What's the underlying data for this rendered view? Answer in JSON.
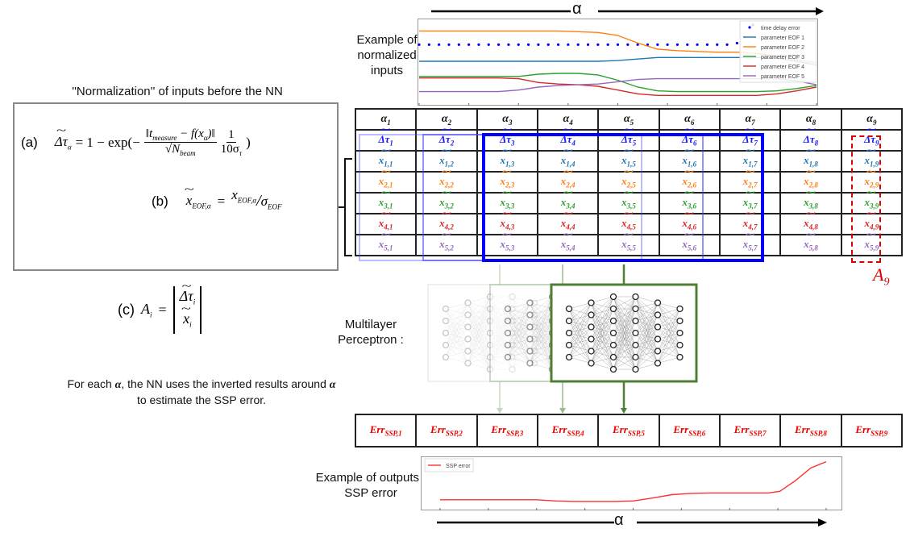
{
  "alpha_symbol": "α",
  "top_example_label": "Example of normalized inputs",
  "bottom_example_label": "Example of outputs / SSP error",
  "normalization_title": "''Normalization'' of inputs before the NN",
  "formulas": {
    "a_label": "(a)",
    "a_lhs": "Δτ",
    "a_lhs_sub": "α",
    "a_mid": "= 1 − exp(−",
    "a_num": "‖t",
    "a_num_sub": "measure",
    "a_num_rest": " − f(x",
    "a_num_rest_sub": "α",
    "a_num_end": ")‖",
    "a_den": "√N",
    "a_den_sub": "beam",
    "a_frac2_num": "1",
    "a_frac2_den": "10σ",
    "a_frac2_den_sub": "τ",
    "a_close": ")",
    "b_label": "(b)",
    "b_lhs": "x",
    "b_lhs_sub": "EOF,α",
    "b_eq": "=",
    "b_num": "x",
    "b_num_sub": "EOF,α",
    "b_slash": "/",
    "b_den": "σ",
    "b_den_sub": "EOF",
    "c_label": "(c)",
    "c_lhs": "A",
    "c_lhs_sub": "i",
    "c_eq": "=",
    "c_top": "Δτ",
    "c_top_sub": "i",
    "c_bot": "x",
    "c_bot_sub": "i"
  },
  "mlp_label": "Multilayer Perceptron :",
  "explanation": {
    "pre": "For each ",
    "alpha": "α",
    "mid": ", the NN uses the inverted results around ",
    "alpha2": "α",
    "post": " to estimate the SSP error."
  },
  "window_label": "A",
  "window_label_sub": "9",
  "table": {
    "headers": [
      "1",
      "2",
      "3",
      "4",
      "5",
      "6",
      "7",
      "8",
      "9"
    ],
    "header_symbol": "α",
    "rows": [
      {
        "symbol": "Δτ",
        "prefix": "",
        "color": "#1a1aff"
      },
      {
        "symbol": "x",
        "prefix": "1,",
        "color": "#1f77b4"
      },
      {
        "symbol": "x",
        "prefix": "2,",
        "color": "#ff7f0e"
      },
      {
        "symbol": "x",
        "prefix": "3,",
        "color": "#2ca02c"
      },
      {
        "symbol": "x",
        "prefix": "4,",
        "color": "#d62728"
      },
      {
        "symbol": "x",
        "prefix": "5,",
        "color": "#9467bd"
      }
    ]
  },
  "err_row": {
    "symbol": "Err",
    "sub_prefix": "SSP,",
    "indices": [
      "1",
      "2",
      "3",
      "4",
      "5",
      "6",
      "7",
      "8",
      "9"
    ]
  },
  "chart_data": [
    {
      "type": "line",
      "title": "",
      "xlabel": "α",
      "ylabel": "",
      "legend_position": "top-right",
      "x": [
        0,
        0.05,
        0.1,
        0.15,
        0.2,
        0.25,
        0.3,
        0.35,
        0.4,
        0.45,
        0.5,
        0.55,
        0.6,
        0.65,
        0.7,
        0.75,
        0.8,
        0.85,
        0.9,
        0.95,
        1.0
      ],
      "series": [
        {
          "name": "time delay error",
          "style": "dots",
          "color": "#0000ff",
          "x": [
            0,
            0.025,
            0.05,
            0.075,
            0.1,
            0.125,
            0.15,
            0.175,
            0.2,
            0.225,
            0.25,
            0.275,
            0.3,
            0.325,
            0.35,
            0.375,
            0.4,
            0.425,
            0.45,
            0.475,
            0.5,
            0.525,
            0.55,
            0.575,
            0.6,
            0.625,
            0.65,
            0.675,
            0.7,
            0.725,
            0.75,
            0.775,
            0.8,
            0.82,
            0.84
          ],
          "values": [
            0.72,
            0.72,
            0.72,
            0.72,
            0.72,
            0.72,
            0.72,
            0.72,
            0.72,
            0.72,
            0.72,
            0.72,
            0.72,
            0.72,
            0.72,
            0.72,
            0.72,
            0.72,
            0.72,
            0.72,
            0.72,
            0.72,
            0.72,
            0.72,
            0.72,
            0.72,
            0.72,
            0.72,
            0.72,
            0.72,
            0.72,
            0.72,
            0.74,
            0.82,
            0.98
          ]
        },
        {
          "name": "parameter EOF 1",
          "color": "#1f77b4",
          "values": [
            0.5,
            0.5,
            0.5,
            0.5,
            0.5,
            0.5,
            0.5,
            0.5,
            0.5,
            0.5,
            0.51,
            0.53,
            0.55,
            0.55,
            0.55,
            0.55,
            0.55,
            0.55,
            0.54,
            0.5,
            0.45
          ]
        },
        {
          "name": "parameter EOF 2",
          "color": "#ff7f0e",
          "values": [
            0.9,
            0.9,
            0.9,
            0.9,
            0.9,
            0.9,
            0.9,
            0.9,
            0.89,
            0.88,
            0.84,
            0.74,
            0.66,
            0.64,
            0.63,
            0.62,
            0.62,
            0.6,
            0.57,
            0.52,
            0.48
          ]
        },
        {
          "name": "parameter EOF 3",
          "color": "#2ca02c",
          "values": [
            0.3,
            0.3,
            0.3,
            0.3,
            0.3,
            0.3,
            0.33,
            0.34,
            0.34,
            0.32,
            0.25,
            0.16,
            0.11,
            0.1,
            0.1,
            0.1,
            0.1,
            0.1,
            0.11,
            0.14,
            0.18
          ]
        },
        {
          "name": "parameter EOF 4",
          "color": "#d62728",
          "values": [
            0.28,
            0.28,
            0.28,
            0.28,
            0.28,
            0.27,
            0.22,
            0.2,
            0.19,
            0.17,
            0.12,
            0.07,
            0.05,
            0.05,
            0.05,
            0.05,
            0.05,
            0.05,
            0.07,
            0.11,
            0.16
          ]
        },
        {
          "name": "parameter EOF 5",
          "color": "#9467bd",
          "values": [
            0.1,
            0.1,
            0.1,
            0.1,
            0.1,
            0.12,
            0.16,
            0.18,
            0.19,
            0.2,
            0.23,
            0.26,
            0.27,
            0.27,
            0.27,
            0.27,
            0.27,
            0.27,
            0.27,
            0.24,
            0.19
          ]
        }
      ],
      "ylim": [
        0,
        1
      ]
    },
    {
      "type": "line",
      "title": "",
      "xlabel": "α",
      "ylabel": "",
      "legend_position": "top-left",
      "x": [
        0,
        0.05,
        0.1,
        0.15,
        0.2,
        0.25,
        0.3,
        0.35,
        0.4,
        0.45,
        0.5,
        0.55,
        0.6,
        0.65,
        0.7,
        0.75,
        0.8,
        0.85,
        0.88,
        0.92,
        0.96,
        1.0
      ],
      "series": [
        {
          "name": "SSP error",
          "color": "#ff3030",
          "values": [
            0.1,
            0.1,
            0.1,
            0.1,
            0.1,
            0.1,
            0.07,
            0.06,
            0.06,
            0.06,
            0.07,
            0.14,
            0.22,
            0.25,
            0.26,
            0.26,
            0.26,
            0.26,
            0.3,
            0.55,
            0.85,
            1.0
          ]
        }
      ],
      "ylim": [
        0,
        1.05
      ]
    }
  ]
}
